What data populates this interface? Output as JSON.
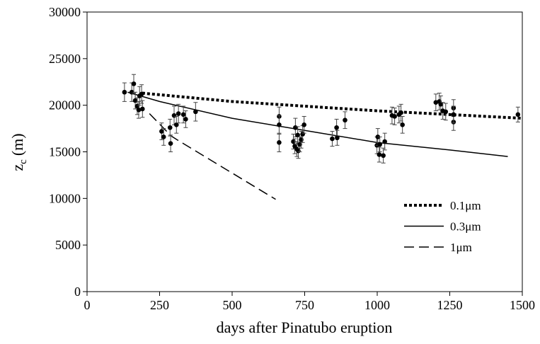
{
  "chart_data": {
    "type": "scatter",
    "x_label": "days after Pinatubo eruption",
    "y_label": "z",
    "y_label_subscript": "c",
    "y_label_unit": "(m)",
    "xlim": [
      0,
      1500
    ],
    "ylim": [
      0,
      30000
    ],
    "xticks": [
      0,
      250,
      500,
      750,
      1000,
      1250,
      1500
    ],
    "yticks": [
      0,
      5000,
      10000,
      15000,
      20000,
      25000,
      30000
    ],
    "points": {
      "color": "#000000",
      "x": [
        129,
        154,
        161,
        166,
        173,
        178,
        181,
        188,
        191,
        257,
        264,
        286,
        288,
        300,
        308,
        315,
        332,
        340,
        374,
        662,
        662,
        662,
        711,
        716,
        718,
        723,
        726,
        728,
        733,
        738,
        743,
        748,
        845,
        860,
        862,
        889,
        999,
        1002,
        1007,
        1009,
        1021,
        1026,
        1051,
        1060,
        1075,
        1082,
        1087,
        1202,
        1214,
        1219,
        1226,
        1236,
        1263,
        1263,
        1263,
        1485
      ],
      "y": [
        21400,
        21400,
        22300,
        20500,
        19900,
        19500,
        21000,
        21200,
        19600,
        17200,
        16600,
        17600,
        15900,
        18900,
        17900,
        19100,
        19000,
        18500,
        19300,
        18800,
        17900,
        16000,
        16100,
        15600,
        17600,
        15300,
        16800,
        15100,
        15800,
        16300,
        16900,
        17900,
        16400,
        17600,
        16500,
        18400,
        15700,
        16600,
        14700,
        15800,
        14600,
        16100,
        18900,
        18800,
        19000,
        19200,
        17900,
        20300,
        20400,
        20100,
        19400,
        19300,
        19700,
        18200,
        19000,
        19000
      ],
      "errors": [
        1000,
        1000,
        1000,
        900,
        900,
        900,
        1000,
        1000,
        900,
        900,
        900,
        900,
        900,
        1000,
        900,
        1000,
        900,
        900,
        1000,
        1000,
        1000,
        1000,
        800,
        800,
        1000,
        800,
        900,
        800,
        800,
        900,
        900,
        900,
        800,
        900,
        800,
        900,
        900,
        900,
        800,
        800,
        800,
        900,
        900,
        900,
        900,
        900,
        900,
        900,
        900,
        900,
        900,
        900,
        900,
        900,
        900,
        800
      ]
    },
    "series": [
      {
        "name": "0.1μm",
        "color": "#000000",
        "style": "dotted",
        "x": [
          190,
          500,
          750,
          1000,
          1250,
          1500
        ],
        "values": [
          21300,
          20400,
          19900,
          19400,
          19000,
          18600
        ]
      },
      {
        "name": "0.3μm",
        "color": "#000000",
        "style": "solid",
        "x": [
          140,
          250,
          500,
          750,
          1000,
          1250,
          1450
        ],
        "values": [
          21400,
          20400,
          18600,
          17300,
          16000,
          15200,
          14500
        ]
      },
      {
        "name": "1μm",
        "color": "#000000",
        "style": "dashed",
        "x": [
          215,
          290,
          310,
          650
        ],
        "values": [
          19100,
          16700,
          16300,
          9900
        ]
      }
    ]
  }
}
